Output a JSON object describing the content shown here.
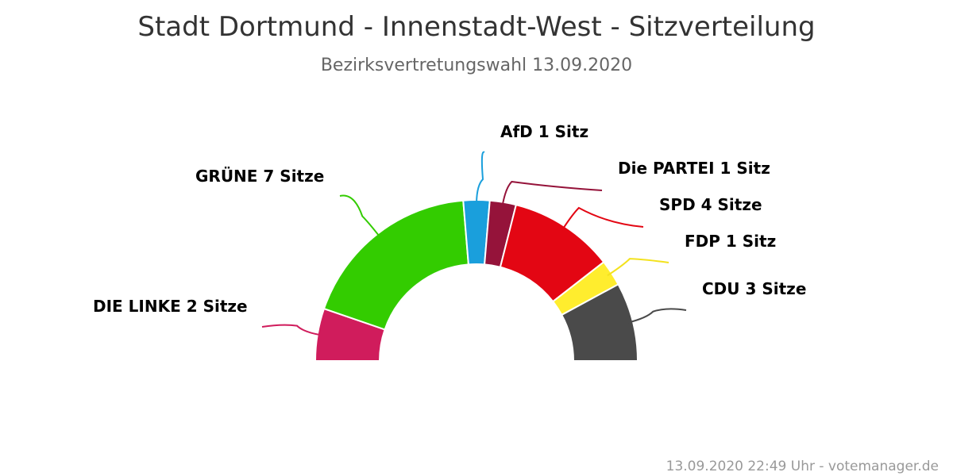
{
  "chart": {
    "title": "Stadt Dortmund - Innenstadt-West - Sitzverteilung",
    "subtitle": "Bezirksvertretungswahl 13.09.2020",
    "footer": "13.09.2020 22:49 Uhr - votemanager.de"
  },
  "chart_data": {
    "type": "pie",
    "variant": "semicircle",
    "total_seats": 19,
    "series": [
      {
        "name": "DIE LINKE",
        "value": 2,
        "label": "DIE LINKE 2 Sitze",
        "color": "#d01c5c"
      },
      {
        "name": "GRÜNE",
        "value": 7,
        "label": "GRÜNE 7 Sitze",
        "color": "#33cc00"
      },
      {
        "name": "AfD",
        "value": 1,
        "label": "AfD 1 Sitz",
        "color": "#1a9fdc"
      },
      {
        "name": "Die PARTEI",
        "value": 1,
        "label": "Die PARTEI 1 Sitz",
        "color": "#95133a"
      },
      {
        "name": "SPD",
        "value": 4,
        "label": "SPD 4 Sitze",
        "color": "#e30613"
      },
      {
        "name": "FDP",
        "value": 1,
        "label": "FDP 1 Sitz",
        "color": "#ffed2e"
      },
      {
        "name": "CDU",
        "value": 3,
        "label": "CDU 3 Sitze",
        "color": "#4a4a4a"
      }
    ]
  }
}
